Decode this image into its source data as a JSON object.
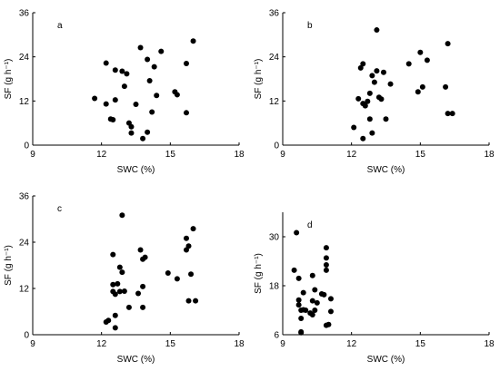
{
  "chart_data": [
    {
      "type": "scatter",
      "panel_label": "a",
      "xlabel": "SWC (%)",
      "ylabel": "SF (g h⁻¹)",
      "xlim": [
        9,
        18
      ],
      "ylim": [
        0,
        36
      ],
      "xticks": [
        9,
        12,
        15,
        18
      ],
      "yticks": [
        0,
        12,
        24,
        36
      ],
      "color": "#000000",
      "points": [
        [
          11.7,
          12.7
        ],
        [
          12.2,
          22.3
        ],
        [
          12.2,
          11.2
        ],
        [
          12.4,
          7.1
        ],
        [
          12.5,
          6.9
        ],
        [
          12.6,
          20.4
        ],
        [
          12.6,
          12.3
        ],
        [
          12.9,
          20.1
        ],
        [
          13.0,
          16.0
        ],
        [
          13.1,
          19.4
        ],
        [
          13.2,
          6.0
        ],
        [
          13.3,
          5.0
        ],
        [
          13.3,
          3.3
        ],
        [
          13.5,
          11.1
        ],
        [
          13.7,
          26.5
        ],
        [
          13.8,
          1.8
        ],
        [
          14.0,
          3.5
        ],
        [
          14.0,
          23.3
        ],
        [
          14.1,
          17.5
        ],
        [
          14.2,
          9.0
        ],
        [
          14.3,
          21.3
        ],
        [
          14.4,
          13.5
        ],
        [
          14.6,
          25.5
        ],
        [
          15.2,
          14.5
        ],
        [
          15.3,
          13.7
        ],
        [
          15.7,
          8.8
        ],
        [
          15.7,
          22.2
        ],
        [
          16.0,
          28.3
        ]
      ]
    },
    {
      "type": "scatter",
      "panel_label": "b",
      "xlabel": "SWC (%)",
      "ylabel": "SF (g h⁻¹)",
      "xlim": [
        9,
        18
      ],
      "ylim": [
        0,
        36
      ],
      "xticks": [
        9,
        12,
        15,
        18
      ],
      "yticks": [
        0,
        12,
        24,
        36
      ],
      "color": "#000000",
      "points": [
        [
          12.1,
          4.8
        ],
        [
          12.3,
          12.6
        ],
        [
          12.4,
          21.0
        ],
        [
          12.5,
          22.1
        ],
        [
          12.5,
          11.3
        ],
        [
          12.6,
          10.7
        ],
        [
          12.7,
          11.9
        ],
        [
          12.8,
          7.1
        ],
        [
          12.8,
          14.1
        ],
        [
          12.9,
          3.3
        ],
        [
          12.9,
          18.9
        ],
        [
          13.0,
          17.1
        ],
        [
          13.1,
          31.3
        ],
        [
          13.1,
          20.2
        ],
        [
          13.2,
          13.0
        ],
        [
          13.3,
          12.5
        ],
        [
          13.4,
          19.8
        ],
        [
          13.5,
          7.1
        ],
        [
          13.7,
          16.6
        ],
        [
          14.5,
          22.1
        ],
        [
          14.9,
          14.5
        ],
        [
          15.0,
          25.2
        ],
        [
          15.1,
          15.8
        ],
        [
          15.3,
          23.1
        ],
        [
          16.1,
          15.8
        ],
        [
          16.2,
          27.6
        ],
        [
          16.2,
          8.6
        ],
        [
          16.4,
          8.6
        ],
        [
          12.5,
          1.8
        ]
      ]
    },
    {
      "type": "scatter",
      "panel_label": "c",
      "xlabel": "SWC (%)",
      "ylabel": "SF (g h⁻¹)",
      "xlim": [
        9,
        18
      ],
      "ylim": [
        0,
        36
      ],
      "xticks": [
        9,
        12,
        15,
        18
      ],
      "yticks": [
        0,
        12,
        24,
        36
      ],
      "color": "#000000",
      "points": [
        [
          12.2,
          3.3
        ],
        [
          12.3,
          3.7
        ],
        [
          12.5,
          13.0
        ],
        [
          12.5,
          11.2
        ],
        [
          12.5,
          20.8
        ],
        [
          12.6,
          10.5
        ],
        [
          12.6,
          5.0
        ],
        [
          12.6,
          1.8
        ],
        [
          12.7,
          13.2
        ],
        [
          12.8,
          17.5
        ],
        [
          12.8,
          11.2
        ],
        [
          12.9,
          31.0
        ],
        [
          12.9,
          16.2
        ],
        [
          13.0,
          11.3
        ],
        [
          13.2,
          7.1
        ],
        [
          13.6,
          10.7
        ],
        [
          13.7,
          22.0
        ],
        [
          13.8,
          12.5
        ],
        [
          13.8,
          19.6
        ],
        [
          13.9,
          20.1
        ],
        [
          13.8,
          7.1
        ],
        [
          14.9,
          16.0
        ],
        [
          15.3,
          14.5
        ],
        [
          15.7,
          22.0
        ],
        [
          15.7,
          25.0
        ],
        [
          15.8,
          23.0
        ],
        [
          15.8,
          8.8
        ],
        [
          15.9,
          15.7
        ],
        [
          16.0,
          27.5
        ],
        [
          16.1,
          8.8
        ]
      ]
    },
    {
      "type": "scatter",
      "panel_label": "d",
      "xlabel": "SWC (%)",
      "ylabel": "SF (g h⁻¹)",
      "xlim": [
        9,
        18
      ],
      "ylim": [
        6,
        36
      ],
      "xticks": [
        9,
        12,
        15,
        18
      ],
      "yticks": [
        6,
        18,
        30
      ],
      "color": "#000000",
      "points": [
        [
          9.5,
          21.8
        ],
        [
          9.6,
          31.0
        ],
        [
          9.7,
          19.8
        ],
        [
          9.7,
          14.5
        ],
        [
          9.7,
          13.3
        ],
        [
          9.8,
          10.0
        ],
        [
          9.8,
          12.0
        ],
        [
          9.8,
          6.7
        ],
        [
          9.8,
          6.5
        ],
        [
          9.9,
          16.3
        ],
        [
          9.9,
          12.1
        ],
        [
          10.0,
          12.0
        ],
        [
          10.2,
          11.3
        ],
        [
          10.3,
          20.5
        ],
        [
          10.3,
          14.3
        ],
        [
          10.4,
          17.0
        ],
        [
          10.4,
          12.0
        ],
        [
          10.5,
          13.8
        ],
        [
          10.7,
          16.0
        ],
        [
          10.8,
          15.8
        ],
        [
          10.9,
          21.8
        ],
        [
          10.9,
          24.8
        ],
        [
          10.9,
          23.1
        ],
        [
          10.9,
          27.3
        ],
        [
          11.0,
          8.5
        ],
        [
          11.1,
          14.8
        ],
        [
          11.1,
          11.7
        ],
        [
          10.9,
          8.3
        ],
        [
          10.3,
          10.9
        ]
      ]
    }
  ]
}
